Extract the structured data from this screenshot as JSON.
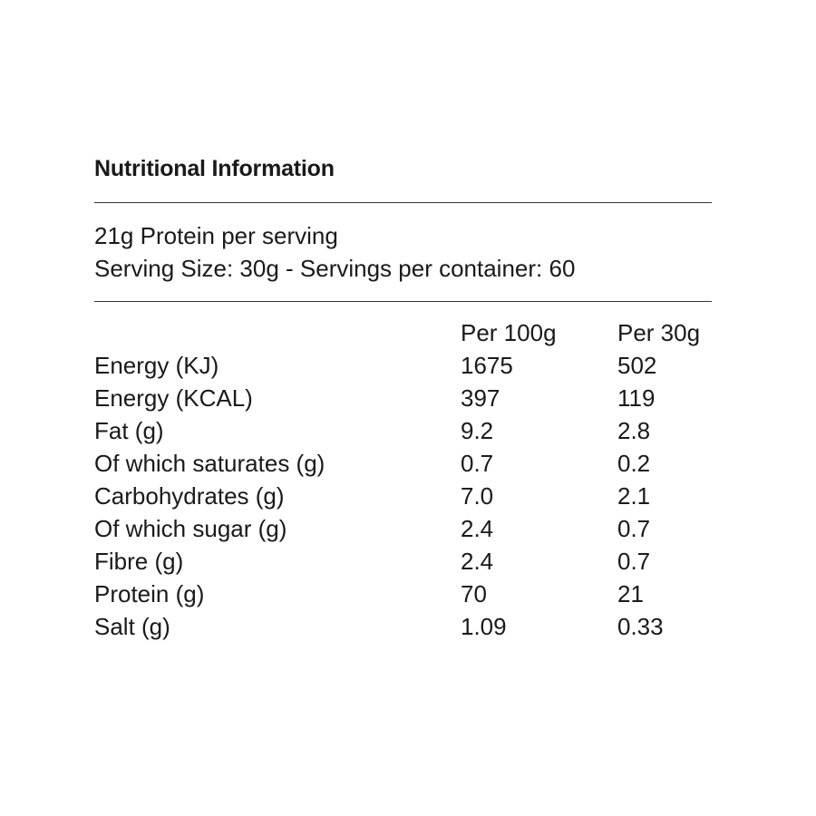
{
  "title": "Nutritional Information",
  "protein_line": "21g Protein per serving",
  "serving_line": "Serving Size: 30g - Servings per container: 60",
  "columns": {
    "per100": "Per 100g",
    "per30": "Per 30g"
  },
  "rows": [
    {
      "label": "Energy (KJ)",
      "per100": "1675",
      "per30": "502"
    },
    {
      "label": "Energy (KCAL)",
      "per100": "397",
      "per30": "119"
    },
    {
      "label": "Fat (g)",
      "per100": "9.2",
      "per30": "2.8"
    },
    {
      "label": "Of which saturates (g)",
      "per100": "0.7",
      "per30": "0.2"
    },
    {
      "label": "Carbohydrates (g)",
      "per100": "7.0",
      "per30": "2.1"
    },
    {
      "label": "Of which sugar (g)",
      "per100": "2.4",
      "per30": "0.7"
    },
    {
      "label": "Fibre (g)",
      "per100": "2.4",
      "per30": "0.7"
    },
    {
      "label": "Protein (g)",
      "per100": "70",
      "per30": "21"
    },
    {
      "label": "Salt (g)",
      "per100": "1.09",
      "per30": "0.33"
    }
  ]
}
